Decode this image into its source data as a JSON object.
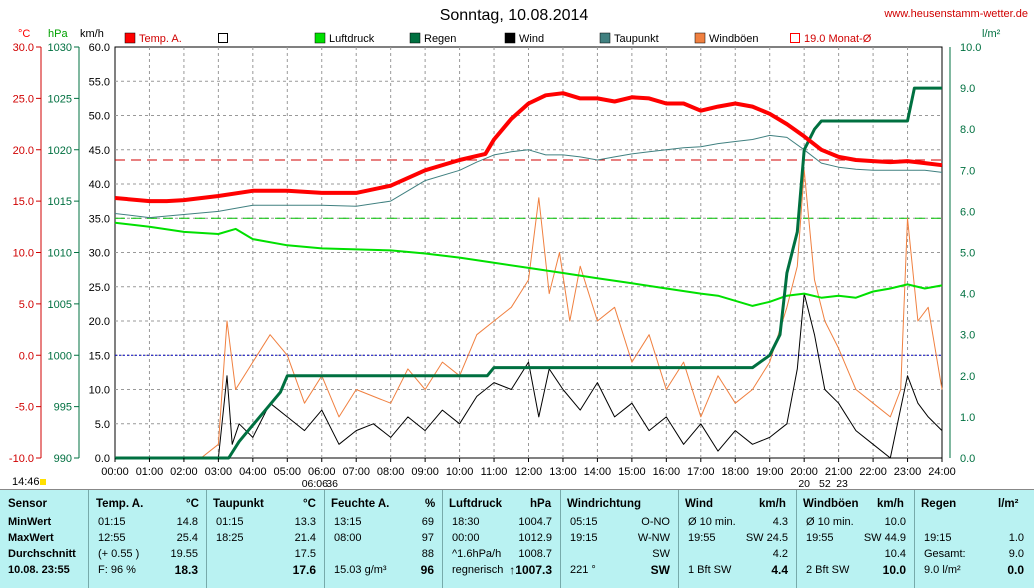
{
  "chart_data": {
    "type": "line",
    "title": "Sonntag, 10.08.2014",
    "website": "www.heusenstamm-wetter.de",
    "axis_units": {
      "temp": "°C",
      "pressure": "hPa",
      "wind": "km/h",
      "rain": "l/m²"
    },
    "x_ticks": [
      "00:00",
      "01:00",
      "02:00",
      "03:00",
      "04:00",
      "05:00",
      "06:00",
      "07:00",
      "08:00",
      "09:00",
      "10:00",
      "11:00",
      "12:00",
      "13:00",
      "14:00",
      "15:00",
      "16:00",
      "17:00",
      "18:00",
      "19:00",
      "20:00",
      "21:00",
      "22:00",
      "23:00",
      "24:00"
    ],
    "temp_ticks": [
      "30.0",
      "25.0",
      "20.0",
      "15.0",
      "10.0",
      "5.0",
      "0.0",
      "-5.0",
      "-10.0"
    ],
    "pressure_ticks": [
      "1030",
      "1025",
      "1020",
      "1015",
      "1010",
      "1005",
      "1000",
      "995",
      "990"
    ],
    "wind_ticks": [
      "60.0",
      "55.0",
      "50.0",
      "45.0",
      "40.0",
      "35.0",
      "30.0",
      "25.0",
      "20.0",
      "15.0",
      "10.0",
      "5.0",
      "0.0"
    ],
    "rain_ticks": [
      "10.0",
      "9.0",
      "8.0",
      "7.0",
      "6.0",
      "5.0",
      "4.0",
      "3.0",
      "2.0",
      "1.0",
      "0.0"
    ],
    "xlim": [
      0,
      24
    ],
    "temp_range": [
      -10,
      30
    ],
    "pressure_range": [
      990,
      1030
    ],
    "wind_range": [
      0,
      60
    ],
    "rain_range": [
      0,
      10
    ],
    "grid": true,
    "legend_position": "top",
    "legend": [
      {
        "label": "Temp. A.",
        "color": "#ff0000",
        "style": "filled"
      },
      {
        "label": "",
        "color": "#000000",
        "style": "outline"
      },
      {
        "label": "Luftdruck",
        "color": "#00e000",
        "style": "filled"
      },
      {
        "label": "Regen",
        "color": "#007040",
        "style": "filled"
      },
      {
        "label": "Wind",
        "color": "#000000",
        "style": "filled"
      },
      {
        "label": "Taupunkt",
        "color": "#408080",
        "style": "filled"
      },
      {
        "label": "Windböen",
        "color": "#f08040",
        "style": "filled"
      },
      {
        "label": "19.0 Monat-Ø",
        "color": "#ff0000",
        "style": "outline"
      }
    ],
    "reference_lines": [
      {
        "axis": "temp",
        "value": 19.0,
        "color": "#d00000",
        "style": "dash"
      },
      {
        "axis": "wind",
        "value": 35.0,
        "color": "#00c000",
        "style": "dash"
      },
      {
        "axis": "wind",
        "value": 15.0,
        "color": "#0000c0",
        "style": "dot"
      }
    ],
    "series": [
      {
        "name": "Temp. A.",
        "axis": "temp",
        "color": "#ff0000",
        "width": 4,
        "x": [
          0,
          1,
          1.5,
          2,
          3,
          4,
          5,
          6,
          7,
          8,
          9,
          10,
          10.75,
          11,
          11.5,
          12,
          12.5,
          13,
          13.5,
          14,
          14.5,
          15,
          15.5,
          16,
          16.5,
          17,
          17.5,
          18,
          18.5,
          19,
          19.5,
          20,
          20.5,
          21,
          21.5,
          22,
          22.5,
          23,
          23.5,
          24
        ],
        "y": [
          15.3,
          15.0,
          15.0,
          15.1,
          15.5,
          16.0,
          16.0,
          15.8,
          15.8,
          16.5,
          18.0,
          19.0,
          19.6,
          21.0,
          23.0,
          24.5,
          25.3,
          25.5,
          25.0,
          25.0,
          24.7,
          25.1,
          25.0,
          24.5,
          24.5,
          23.8,
          24.2,
          24.5,
          24.2,
          23.5,
          22.5,
          21.3,
          20.0,
          19.3,
          19.0,
          18.9,
          18.8,
          18.9,
          18.7,
          18.5
        ]
      },
      {
        "name": "Taupunkt",
        "axis": "temp",
        "color": "#408080",
        "width": 1,
        "x": [
          0,
          1,
          2,
          3,
          4,
          5,
          6,
          7,
          8,
          9,
          10,
          10.5,
          11,
          11.5,
          12,
          12.5,
          13,
          13.5,
          14,
          14.5,
          15,
          15.5,
          16,
          16.5,
          17,
          17.5,
          18,
          18.5,
          19,
          19.5,
          20,
          20.5,
          21,
          21.5,
          22,
          22.5,
          23,
          23.5,
          24
        ],
        "y": [
          13.8,
          13.4,
          13.7,
          14.0,
          14.6,
          14.6,
          14.6,
          14.5,
          15.0,
          17.0,
          18.0,
          18.8,
          19.5,
          19.8,
          20.0,
          19.5,
          19.5,
          19.3,
          19.0,
          19.3,
          19.6,
          19.8,
          20.0,
          20.2,
          20.3,
          20.6,
          20.8,
          21.0,
          21.4,
          21.2,
          20.0,
          18.7,
          18.3,
          18.1,
          18.0,
          18.0,
          18.0,
          18.0,
          17.8
        ]
      },
      {
        "name": "Luftdruck",
        "axis": "pressure",
        "color": "#00e000",
        "width": 2,
        "x": [
          0,
          1,
          2,
          3,
          3.5,
          4,
          5,
          6,
          7,
          8,
          9,
          10,
          11,
          12,
          13,
          14,
          15,
          16,
          17,
          17.5,
          18,
          18.5,
          19,
          19.5,
          20,
          20.5,
          21,
          21.5,
          22,
          22.5,
          23,
          23.5,
          24
        ],
        "y": [
          1012.9,
          1012.5,
          1012.0,
          1011.8,
          1012.3,
          1011.3,
          1010.7,
          1010.4,
          1010.3,
          1010.2,
          1009.9,
          1009.5,
          1009.0,
          1008.5,
          1008.0,
          1007.5,
          1007.0,
          1006.5,
          1006.0,
          1005.8,
          1005.3,
          1004.8,
          1005.2,
          1005.8,
          1006.0,
          1005.6,
          1005.8,
          1005.6,
          1006.2,
          1006.5,
          1006.9,
          1006.5,
          1006.8
        ]
      },
      {
        "name": "Wind",
        "axis": "wind",
        "color": "#000000",
        "width": 1,
        "x": [
          0,
          3,
          3.25,
          3.4,
          3.6,
          4,
          4.5,
          5,
          5.5,
          6,
          6.5,
          7,
          7.5,
          8,
          8.5,
          9,
          9.5,
          10,
          10.5,
          11,
          11.5,
          12,
          12.3,
          12.6,
          13,
          13.5,
          14,
          14.5,
          15,
          15.5,
          16,
          16.5,
          17,
          17.5,
          18,
          18.5,
          19,
          19.5,
          19.8,
          20,
          20.3,
          20.6,
          21,
          21.5,
          22,
          22.5,
          23,
          23.3,
          23.6,
          24
        ],
        "y": [
          0,
          0,
          12,
          2,
          5,
          3,
          8,
          6,
          4,
          7,
          2,
          4,
          5,
          3,
          6,
          4,
          7,
          5,
          9,
          11,
          10,
          14,
          6,
          13,
          10,
          7,
          11,
          6,
          8,
          4,
          6,
          2,
          5,
          1,
          4,
          2,
          3,
          5,
          13,
          24,
          18,
          10,
          8,
          4,
          2,
          0,
          12,
          8,
          6,
          4
        ]
      },
      {
        "name": "Windböen",
        "axis": "wind",
        "color": "#f08040",
        "width": 1,
        "x": [
          0,
          2.5,
          3,
          3.25,
          3.5,
          4,
          4.5,
          5,
          5.5,
          6,
          6.5,
          7,
          7.5,
          8,
          8.5,
          9,
          9.5,
          10,
          10.5,
          11,
          11.5,
          12,
          12.3,
          12.6,
          12.9,
          13.2,
          13.5,
          14,
          14.5,
          15,
          15.5,
          16,
          16.5,
          17,
          17.5,
          18,
          18.5,
          19,
          19.5,
          19.8,
          20,
          20.3,
          20.6,
          21,
          21.5,
          22,
          22.5,
          22.8,
          23,
          23.3,
          23.6,
          24
        ],
        "y": [
          0,
          0,
          2,
          20,
          10,
          14,
          18,
          15,
          8,
          12,
          6,
          10,
          9,
          8,
          13,
          10,
          14,
          12,
          18,
          20,
          22,
          26,
          38,
          24,
          30,
          20,
          28,
          20,
          22,
          14,
          18,
          10,
          14,
          6,
          12,
          8,
          10,
          14,
          22,
          28,
          42,
          26,
          20,
          16,
          10,
          8,
          6,
          10,
          35,
          20,
          22,
          10
        ]
      },
      {
        "name": "Regen",
        "axis": "rain",
        "color": "#007040",
        "width": 3,
        "x": [
          0,
          3.3,
          3.6,
          4.0,
          4.4,
          4.8,
          5.0,
          6.0,
          7.0,
          8.0,
          9.0,
          10.5,
          10.8,
          11.0,
          12.0,
          13.0,
          14.0,
          15.0,
          16.0,
          17.0,
          18.0,
          18.5,
          19.0,
          19.3,
          19.5,
          19.8,
          20.0,
          20.3,
          20.5,
          20.7,
          21.0,
          22.0,
          23.0,
          23.2,
          23.5,
          24.0
        ],
        "y": [
          0,
          0,
          0.4,
          0.8,
          1.2,
          1.6,
          2.0,
          2.0,
          2.0,
          2.0,
          2.0,
          2.0,
          2.0,
          2.2,
          2.2,
          2.2,
          2.2,
          2.2,
          2.2,
          2.2,
          2.2,
          2.2,
          2.5,
          3.0,
          4.5,
          5.5,
          7.5,
          8.0,
          8.2,
          8.2,
          8.2,
          8.2,
          8.2,
          9.0,
          9.0,
          9.0
        ]
      }
    ],
    "x_annotations": [
      {
        "x": 5.8,
        "label": "06:06"
      },
      {
        "x": 6.3,
        "label": "36"
      },
      {
        "x": 20.0,
        "label": "20"
      },
      {
        "x": 20.6,
        "label": "52"
      },
      {
        "x": 21.1,
        "label": "23"
      }
    ],
    "corner_label": "14:46"
  },
  "table": {
    "headers": {
      "sensor": "Sensor",
      "temp": "Temp. A.",
      "temp_unit": "°C",
      "dew": "Taupunkt",
      "dew_unit": "°C",
      "hum": "Feuchte A.",
      "hum_unit": "%",
      "press": "Luftdruck",
      "press_unit": "hPa",
      "dir": "Windrichtung",
      "wind": "Wind",
      "wind_unit": "km/h",
      "gust": "Windböen",
      "gust_unit": "km/h",
      "rain": "Regen",
      "rain_unit": "l/m²"
    },
    "rows": [
      {
        "label": "MinWert",
        "temp_time": "01:15",
        "temp_val": "14.8",
        "dew_time": "01:15",
        "dew_val": "13.3",
        "hum_time": "13:15",
        "hum_val": "69",
        "press_time": "18:30",
        "press_val": "1004.7",
        "dir_time": "05:15",
        "dir_val": "O-NO",
        "wind_time": "Ø 10 min.",
        "wind_val": "4.3",
        "gust_time": "Ø 10 min.",
        "gust_val": "10.0",
        "rain_time": "",
        "rain_val": ""
      },
      {
        "label": "MaxWert",
        "temp_time": "12:55",
        "temp_val": "25.4",
        "dew_time": "18:25",
        "dew_val": "21.4",
        "hum_time": "08:00",
        "hum_val": "97",
        "press_time": "00:00",
        "press_val": "1012.9",
        "dir_time": "19:15",
        "dir_val": "W-NW",
        "wind_time": "19:55",
        "wind_val": "SW 24.5",
        "gust_time": "19:55",
        "gust_val": "SW 44.9",
        "rain_time": "19:15",
        "rain_val": "1.0"
      },
      {
        "label": "Durchschnitt",
        "temp_time": "(+ 0.55 )",
        "temp_val": "19.55",
        "dew_time": "",
        "dew_val": "17.5",
        "hum_time": "",
        "hum_val": "88",
        "press_time": "^1.6hPa/h",
        "press_val": "1008.7",
        "dir_time": "",
        "dir_val": "SW",
        "wind_time": "",
        "wind_val": "4.2",
        "gust_time": "",
        "gust_val": "10.4",
        "rain_time": "Gesamt:",
        "rain_val": "9.0"
      },
      {
        "label": "10.08. 23:55",
        "temp_time": "F: 96 %",
        "temp_val": "18.3",
        "dew_time": "",
        "dew_val": "17.6",
        "hum_time": "15.03 g/m³",
        "hum_val": "96",
        "press_time": "regnerisch",
        "press_arrow": "↑",
        "press_val": "1007.3",
        "dir_time": "221 °",
        "dir_val": "SW",
        "wind_time": "1 Bft SW",
        "wind_val": "4.4",
        "gust_time": "2 Bft SW",
        "gust_val": "10.0",
        "rain_time": "9.0 l/m²",
        "rain_val": "0.0"
      }
    ]
  }
}
